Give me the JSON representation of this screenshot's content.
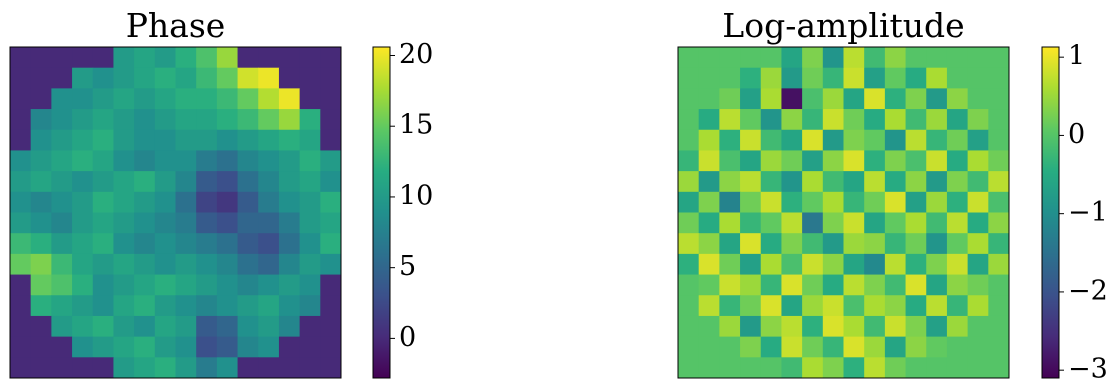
{
  "chart_data": [
    {
      "type": "heatmap",
      "title": "Phase",
      "colormap": "viridis",
      "zlim": [
        -2.8,
        20.6
      ],
      "colorbar_ticks": [
        0,
        5,
        10,
        15,
        20
      ],
      "values": [
        [
          0,
          0,
          0,
          0,
          0,
          10,
          11,
          10,
          12,
          14,
          17,
          0,
          0,
          0,
          0,
          0
        ],
        [
          0,
          0,
          0,
          10,
          9,
          10,
          11,
          12,
          11,
          13,
          15,
          19,
          20,
          0,
          0,
          0
        ],
        [
          0,
          0,
          9,
          9,
          10,
          11,
          10,
          11,
          12,
          12,
          13,
          15,
          18,
          20,
          0,
          0
        ],
        [
          0,
          8,
          9,
          10,
          11,
          10,
          9,
          10,
          11,
          11,
          12,
          13,
          15,
          17,
          12,
          0
        ],
        [
          0,
          9,
          10,
          11,
          12,
          10,
          9,
          9,
          10,
          10,
          9,
          10,
          11,
          12,
          11,
          0
        ],
        [
          9,
          10,
          11,
          12,
          11,
          9,
          8,
          9,
          9,
          7,
          6,
          8,
          9,
          10,
          12,
          10
        ],
        [
          10,
          11,
          10,
          9,
          10,
          11,
          12,
          10,
          8,
          4,
          3,
          6,
          8,
          10,
          11,
          9
        ],
        [
          9,
          8,
          9,
          10,
          12,
          11,
          10,
          9,
          6,
          2,
          1,
          4,
          7,
          9,
          10,
          12
        ],
        [
          10,
          9,
          8,
          10,
          11,
          10,
          9,
          8,
          7,
          4,
          3,
          5,
          5,
          7,
          10,
          11
        ],
        [
          13,
          12,
          10,
          11,
          12,
          9,
          8,
          9,
          8,
          7,
          6,
          4,
          3,
          6,
          9,
          12
        ],
        [
          15,
          16,
          13,
          11,
          10,
          11,
          10,
          9,
          10,
          9,
          8,
          6,
          5,
          8,
          10,
          9
        ],
        [
          0,
          15,
          14,
          12,
          9,
          10,
          11,
          12,
          11,
          10,
          9,
          8,
          9,
          10,
          9,
          0
        ],
        [
          0,
          12,
          11,
          10,
          9,
          11,
          12,
          10,
          9,
          8,
          9,
          10,
          11,
          9,
          8,
          0
        ],
        [
          0,
          0,
          10,
          11,
          12,
          10,
          9,
          11,
          10,
          4,
          5,
          9,
          10,
          8,
          0,
          0
        ],
        [
          0,
          0,
          0,
          9,
          10,
          11,
          12,
          10,
          9,
          3,
          4,
          8,
          9,
          0,
          0,
          0
        ],
        [
          0,
          0,
          0,
          0,
          0,
          10,
          11,
          12,
          10,
          7,
          9,
          0,
          0,
          0,
          0,
          0
        ]
      ]
    },
    {
      "type": "heatmap",
      "title": "Log-amplitude",
      "colormap": "viridis",
      "zlim": [
        -3.1,
        1.13
      ],
      "colorbar_ticks": [
        1,
        0,
        {
          "value": -1,
          "label": "−1"
        },
        {
          "value": -2,
          "label": "−2"
        },
        {
          "value": -3,
          "label": "−3"
        }
      ],
      "values": [
        [
          0,
          0,
          0,
          0,
          0,
          -0.6,
          0.3,
          -0.9,
          0.7,
          -0.2,
          0.4,
          0,
          0,
          0,
          0,
          0
        ],
        [
          0,
          0,
          0,
          -0.4,
          0.5,
          -0.8,
          0.2,
          -0.3,
          0.8,
          -0.7,
          0.1,
          -0.5,
          0.6,
          0,
          0,
          0
        ],
        [
          0,
          0,
          0.2,
          -0.7,
          0.6,
          -2.9,
          -0.1,
          0.5,
          -0.6,
          0.9,
          -0.4,
          0.3,
          -0.8,
          0.4,
          0,
          0
        ],
        [
          0,
          -0.5,
          0.7,
          0.1,
          -0.9,
          0.4,
          -0.3,
          0.8,
          0.2,
          -0.5,
          0.6,
          -0.2,
          0.5,
          -0.6,
          0.3,
          0
        ],
        [
          0,
          0.6,
          -0.4,
          0.8,
          -0.2,
          -0.6,
          0.9,
          -0.8,
          0.3,
          0.1,
          -0.9,
          0.7,
          -0.3,
          0.2,
          -0.7,
          0
        ],
        [
          -0.3,
          0.8,
          -0.1,
          -0.6,
          0.5,
          0.2,
          -0.7,
          0.4,
          0.9,
          -0.4,
          0.3,
          -0.1,
          0.8,
          -0.5,
          0.6,
          0.2
        ],
        [
          0.5,
          -0.8,
          0.4,
          0.7,
          -0.3,
          -0.9,
          0.6,
          -0.2,
          -0.6,
          0.7,
          -0.5,
          0.4,
          -0.8,
          0.3,
          -0.2,
          0.7
        ],
        [
          -0.6,
          0.3,
          -1.2,
          0.2,
          0.8,
          -0.4,
          0.1,
          0.6,
          -0.3,
          0.2,
          0.9,
          -0.7,
          0.5,
          -0.4,
          0.8,
          -0.1
        ],
        [
          0.2,
          -0.5,
          0.6,
          -0.3,
          0.1,
          0.7,
          -1.4,
          0.3,
          0.8,
          -0.6,
          0.1,
          0.6,
          -0.2,
          0.7,
          -0.5,
          0.4
        ],
        [
          0.7,
          0.4,
          -0.6,
          0.9,
          -0.5,
          0.3,
          -0.2,
          -0.8,
          0.5,
          0.4,
          -0.3,
          0.2,
          -0.9,
          0.1,
          0.6,
          -0.3
        ],
        [
          -0.4,
          0.9,
          0.2,
          -0.7,
          0.6,
          -0.1,
          0.8,
          0.4,
          -0.6,
          -1.1,
          0.7,
          -0.4,
          0.3,
          0.8,
          -0.6,
          0.5
        ],
        [
          0,
          0.1,
          0.8,
          0.5,
          -0.3,
          0.9,
          0.2,
          -0.5,
          0.7,
          0.3,
          -0.2,
          0.9,
          -0.6,
          0.4,
          0.2,
          0
        ],
        [
          0,
          0.7,
          -0.3,
          0.2,
          0.9,
          -0.6,
          0.5,
          0.8,
          -0.1,
          0.6,
          0.4,
          -0.5,
          0.7,
          -0.3,
          0.6,
          0
        ],
        [
          0,
          0,
          0.5,
          -0.8,
          0.4,
          0.7,
          -0.4,
          0.9,
          0.6,
          -0.2,
          0.8,
          0.3,
          -0.7,
          0.5,
          0,
          0
        ],
        [
          0,
          0,
          0,
          0.3,
          -0.5,
          0.8,
          0.2,
          -0.3,
          0.9,
          0.5,
          -0.6,
          0.4,
          0.1,
          0,
          0,
          0
        ],
        [
          0,
          0,
          0,
          0,
          0,
          -0.2,
          0.6,
          0.3,
          -0.4,
          0.7,
          0.2,
          0,
          0,
          0,
          0,
          0
        ]
      ]
    }
  ]
}
